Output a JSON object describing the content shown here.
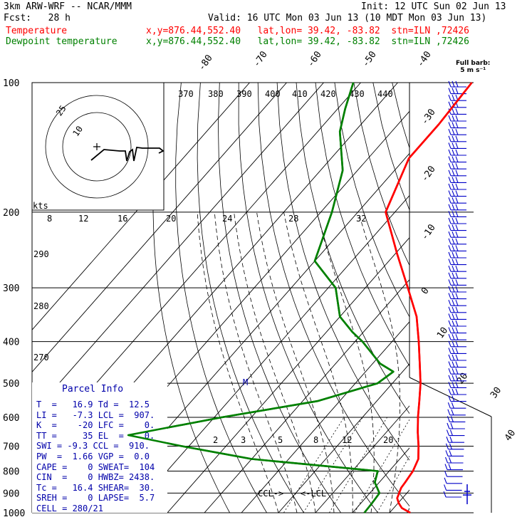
{
  "header": {
    "model": "3km ARW-WRF -- NCAR/MMM",
    "init": "Init: 12 UTC Sun 02 Jun 13",
    "fcst": "Fcst:   28 h",
    "valid": "Valid: 16 UTC Mon 03 Jun 13 (10 MDT Mon 03 Jun 13)",
    "temp_label": "Temperature",
    "temp_loc": "x,y=876.44,552.40   lat,lon= 39.42, -83.82  stn=ILN ,72426",
    "dew_label": "Dewpoint temperature",
    "dew_loc": "x,y=876.44,552.40   lat,lon= 39.42, -83.82  stn=ILN ,72426"
  },
  "colors": {
    "temperature": "#ff0000",
    "dewpoint": "#008000",
    "barbs": "#0000c8",
    "text": "#000000"
  },
  "chart_data": {
    "type": "line",
    "diagram": "skew-T log-p",
    "pressure_axis": {
      "ticks": [
        "100",
        "200",
        "300",
        "400",
        "500",
        "600",
        "700",
        "800",
        "900",
        "1000"
      ],
      "scale": "log"
    },
    "isotherm_labels": [
      "-80",
      "-70",
      "-60",
      "-50",
      "-40",
      "-30",
      "-20",
      "-10",
      "0",
      "10",
      "20",
      "30",
      "40"
    ],
    "theta_labels": [
      "370",
      "380",
      "390",
      "400",
      "410",
      "420",
      "430",
      "440",
      "290",
      "280",
      "270"
    ],
    "mixing_ratio_labels": [
      "2",
      "3",
      "5",
      "8",
      "12",
      "20"
    ],
    "hodo_speed_labels": [
      "8",
      "12",
      "16",
      "20",
      "24",
      "28",
      "32"
    ],
    "hodograph": {
      "units": "kts",
      "ring_labels": [
        "10",
        "25"
      ]
    },
    "barb_key": {
      "line1": "Full barb:",
      "line2": "5 m s⁻¹"
    },
    "series": [
      {
        "name": "Temperature",
        "color": "#ff0000",
        "points": [
          [
            1000,
            25.6
          ],
          [
            975,
            22.2
          ],
          [
            950,
            20.2
          ],
          [
            925,
            18.6
          ],
          [
            900,
            17.9
          ],
          [
            875,
            17.2
          ],
          [
            850,
            17.0
          ],
          [
            800,
            16.4
          ],
          [
            750,
            15.0
          ],
          [
            700,
            12.0
          ],
          [
            650,
            8.5
          ],
          [
            600,
            5.0
          ],
          [
            550,
            1.5
          ],
          [
            500,
            -2.4
          ],
          [
            450,
            -7.3
          ],
          [
            400,
            -12.8
          ],
          [
            350,
            -19.3
          ],
          [
            300,
            -28.5
          ],
          [
            250,
            -39.5
          ],
          [
            200,
            -52.5
          ],
          [
            150,
            -59
          ],
          [
            125,
            -59
          ],
          [
            100,
            -60
          ]
        ]
      },
      {
        "name": "Dewpoint temperature",
        "color": "#008000",
        "points": [
          [
            1000,
            13.2
          ],
          [
            950,
            13.0
          ],
          [
            925,
            12.8
          ],
          [
            900,
            12.6
          ],
          [
            850,
            8.8
          ],
          [
            800,
            6.9
          ],
          [
            750,
            -30
          ],
          [
            700,
            -52
          ],
          [
            660,
            -69
          ],
          [
            600,
            -48
          ],
          [
            550,
            -26
          ],
          [
            500,
            -14
          ],
          [
            470,
            -12.5
          ],
          [
            450,
            -18
          ],
          [
            400,
            -28
          ],
          [
            380,
            -33
          ],
          [
            350,
            -40
          ],
          [
            300,
            -48
          ],
          [
            260,
            -60
          ],
          [
            200,
            -67
          ],
          [
            160,
            -74
          ],
          [
            130,
            -84
          ],
          [
            115,
            -88
          ],
          [
            100,
            -92
          ]
        ]
      }
    ],
    "annotations": [
      "CCL->",
      "<-LCL",
      "M"
    ],
    "parcel_info": {
      "title": "Parcel Info",
      "rows": [
        "T  =   16.9 Td =  12.5",
        "LI =   -7.3 LCL =  907.",
        "K  =    -20 LFC =    0.",
        "TT =     35 EL  =    0.",
        "SWI = -9.3 CCL =  910.",
        "PW  =  1.66 VGP =  0.0",
        "CAPE =    0 SWEAT=  104",
        "CIN  =    0 HWBZ= 2438.",
        "Tc =   16.4 SHEAR=  30.",
        "SREH =    0 LAPSE=  5.7",
        "CELL = 280/21"
      ]
    }
  }
}
